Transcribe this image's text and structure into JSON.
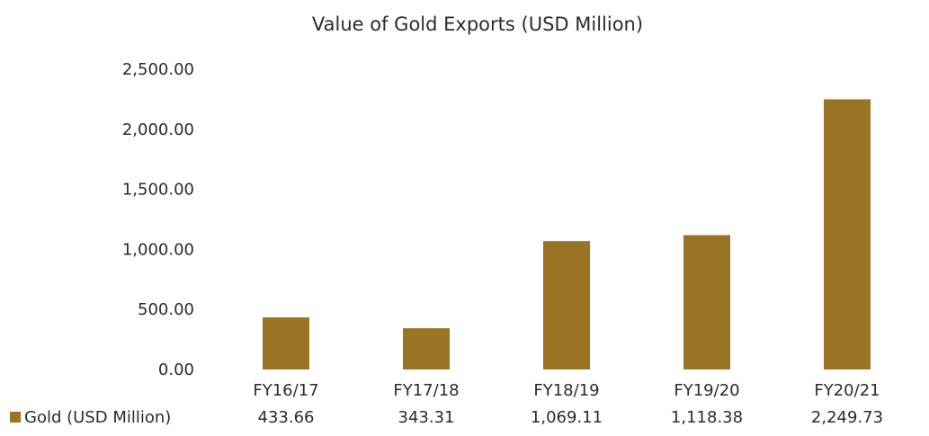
{
  "chart_data": {
    "type": "bar",
    "title": "Value of Gold Exports  (USD Million)",
    "categories": [
      "FY16/17",
      "FY17/18",
      "FY18/19",
      "FY19/20",
      "FY20/21"
    ],
    "series": [
      {
        "name": "Gold (USD Million)",
        "values": [
          433.66,
          343.31,
          1069.11,
          1118.38,
          2249.73
        ],
        "value_labels": [
          "433.66",
          "343.31",
          "1,069.11",
          "1,118.38",
          "2,249.73"
        ],
        "color": "#9a7424"
      }
    ],
    "yticks": [
      "0.00",
      "500.00",
      "1,000.00",
      "1,500.00",
      "2,000.00",
      "2,500.00"
    ],
    "ylim": [
      0,
      2500
    ],
    "grid": false,
    "legend": "data-table-below"
  }
}
